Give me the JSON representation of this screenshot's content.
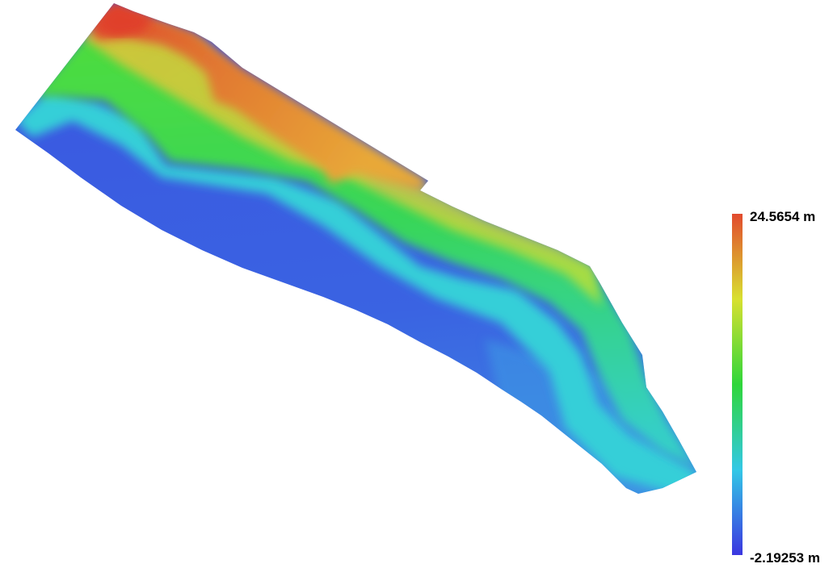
{
  "legend": {
    "max_label": "24.5654 m",
    "min_label": "-2.19253 m",
    "max_value": 24.5654,
    "min_value": -2.19253,
    "unit": "m",
    "colormap": [
      "#3b36e0",
      "#33c8e6",
      "#2fd63a",
      "#d8e030",
      "#e24a2e"
    ]
  },
  "terrain": {
    "colors": {
      "low": "#3d5fe2",
      "shore": "#38d2dc",
      "mid": "#3fd84a",
      "upper": "#b9e03a",
      "high": "#e58a34",
      "peak": "#e0402c"
    }
  }
}
